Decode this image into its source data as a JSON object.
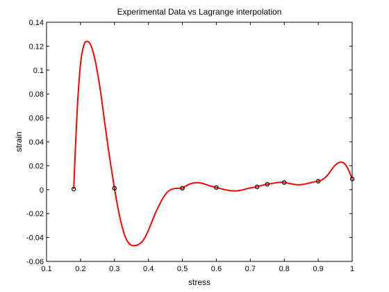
{
  "chart_data": {
    "type": "line",
    "title": "Experimental Data vs Lagrange interpolation",
    "xlabel": "stress",
    "ylabel": "strain",
    "xlim": [
      0.1,
      1.0
    ],
    "ylim": [
      -0.06,
      0.14
    ],
    "xticks": [
      "0.1",
      "0.2",
      "0.3",
      "0.4",
      "0.5",
      "0.6",
      "0.7",
      "0.8",
      "0.9",
      "1"
    ],
    "yticks": [
      "-0.06",
      "-0.04",
      "-0.02",
      "0",
      "0.02",
      "0.04",
      "0.06",
      "0.08",
      "0.1",
      "0.12",
      "0.14"
    ],
    "grid": false,
    "legend": "none",
    "series": [
      {
        "style": "markers",
        "marker": "circle",
        "color": "#000000",
        "x": [
          0.18,
          0.3,
          0.5,
          0.6,
          0.72,
          0.75,
          0.8,
          0.9,
          1.0
        ],
        "y": [
          0.0005,
          0.0012,
          0.0012,
          0.0018,
          0.0023,
          0.0045,
          0.006,
          0.007,
          0.009
        ]
      },
      {
        "style": "line",
        "color": "#ff0000",
        "x": [
          0.18,
          0.19,
          0.2,
          0.21,
          0.22,
          0.23,
          0.24,
          0.25,
          0.26,
          0.27,
          0.28,
          0.29,
          0.3,
          0.31,
          0.32,
          0.33,
          0.34,
          0.35,
          0.36,
          0.37,
          0.38,
          0.39,
          0.4,
          0.41,
          0.42,
          0.43,
          0.44,
          0.45,
          0.46,
          0.47,
          0.48,
          0.49,
          0.5,
          0.51,
          0.52,
          0.53,
          0.54,
          0.55,
          0.56,
          0.57,
          0.58,
          0.59,
          0.6,
          0.61,
          0.62,
          0.63,
          0.64,
          0.65,
          0.66,
          0.67,
          0.68,
          0.69,
          0.7,
          0.71,
          0.72,
          0.73,
          0.74,
          0.75,
          0.76,
          0.77,
          0.78,
          0.79,
          0.8,
          0.81,
          0.82,
          0.83,
          0.84,
          0.85,
          0.86,
          0.87,
          0.88,
          0.89,
          0.9,
          0.91,
          0.92,
          0.93,
          0.94,
          0.95,
          0.96,
          0.97,
          0.98,
          0.99,
          1.0
        ],
        "y": [
          0.0005,
          0.065,
          0.105,
          0.121,
          0.124,
          0.121,
          0.112,
          0.098,
          0.08,
          0.059,
          0.038,
          0.019,
          0.0012,
          -0.015,
          -0.028,
          -0.038,
          -0.044,
          -0.0465,
          -0.0468,
          -0.046,
          -0.044,
          -0.04,
          -0.034,
          -0.027,
          -0.02,
          -0.014,
          -0.0085,
          -0.004,
          -0.001,
          0.0005,
          0.001,
          0.0012,
          0.0012,
          0.003,
          0.0045,
          0.0055,
          0.0058,
          0.0057,
          0.0052,
          0.0043,
          0.0033,
          0.0025,
          0.0018,
          0.001,
          0.0003,
          -0.0003,
          -0.0008,
          -0.001,
          -0.001,
          -0.0006,
          0.0,
          0.0008,
          0.0014,
          0.0019,
          0.0023,
          0.0033,
          0.004,
          0.0045,
          0.005,
          0.0055,
          0.0059,
          0.0061,
          0.006,
          0.0055,
          0.0049,
          0.0044,
          0.0041,
          0.0042,
          0.0046,
          0.0053,
          0.006,
          0.0066,
          0.007,
          0.008,
          0.01,
          0.013,
          0.017,
          0.0205,
          0.0225,
          0.023,
          0.021,
          0.016,
          0.009
        ]
      }
    ]
  }
}
